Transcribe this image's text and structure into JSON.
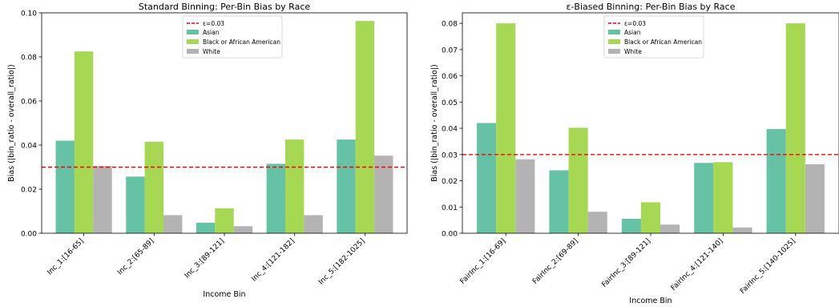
{
  "chart_data": [
    {
      "type": "bar",
      "title": "Standard Binning: Per-Bin Bias by Race",
      "xlabel": "Income Bin",
      "ylabel": "Bias (|bin_ratio - overall_ratio|)",
      "ylim": [
        0,
        0.1
      ],
      "yticks": [
        0.0,
        0.02,
        0.04,
        0.06,
        0.08,
        0.1
      ],
      "ytick_labels": [
        "0.00",
        "0.02",
        "0.04",
        "0.06",
        "0.08",
        "0.10"
      ],
      "categories": [
        "Inc_1:[16-65]",
        "Inc_2:[65-89]",
        "Inc_3:[89-121]",
        "Inc_4:[121-182]",
        "Inc_5:[182-1025]"
      ],
      "series": [
        {
          "name": "Asian",
          "color": "#66c2a5",
          "values": [
            0.042,
            0.0257,
            0.0048,
            0.0315,
            0.0425
          ]
        },
        {
          "name": "Black or African American",
          "color": "#a6d854",
          "values": [
            0.0825,
            0.0415,
            0.0113,
            0.0425,
            0.0963
          ]
        },
        {
          "name": "White",
          "color": "#b3b3b3",
          "values": [
            0.0305,
            0.0082,
            0.0032,
            0.0082,
            0.0352
          ]
        }
      ],
      "threshold": {
        "label": "ε=0.03",
        "value": 0.03,
        "color": "#ff0000"
      },
      "legend_position": "top-center",
      "grid": false
    },
    {
      "type": "bar",
      "title": "ε-Biased Binning: Per-Bin Bias by Race",
      "xlabel": "Income Bin",
      "ylabel": "Bias (|bin_ratio - overall_ratio|)",
      "ylim": [
        0,
        0.084
      ],
      "yticks": [
        0.0,
        0.01,
        0.02,
        0.03,
        0.04,
        0.05,
        0.06,
        0.07,
        0.08
      ],
      "ytick_labels": [
        "0.00",
        "0.01",
        "0.02",
        "0.03",
        "0.04",
        "0.05",
        "0.06",
        "0.07",
        "0.08"
      ],
      "categories": [
        "FairInc_1:[16-69]",
        "FairInc_2:[69-89]",
        "FairInc_3:[89-121]",
        "FairInc_4:[121-140]",
        "FairInc_5:[140-1025]"
      ],
      "series": [
        {
          "name": "Asian",
          "color": "#66c2a5",
          "values": [
            0.042,
            0.024,
            0.0055,
            0.0268,
            0.0397
          ]
        },
        {
          "name": "Black or African American",
          "color": "#a6d854",
          "values": [
            0.08,
            0.0402,
            0.0118,
            0.0271,
            0.08
          ]
        },
        {
          "name": "White",
          "color": "#b3b3b3",
          "values": [
            0.0282,
            0.0082,
            0.0033,
            0.0022,
            0.0263
          ]
        }
      ],
      "threshold": {
        "label": "ε=0.03",
        "value": 0.03,
        "color": "#ff0000"
      },
      "legend_position": "top-center",
      "grid": false
    }
  ]
}
